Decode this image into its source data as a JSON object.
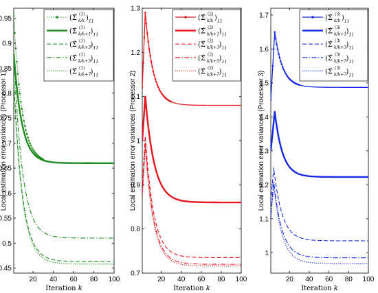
{
  "chart_data": [
    {
      "type": "line",
      "ylabel": "Local estimation error variances (Processor 1)",
      "xlabel": "Iteration k",
      "xlim": [
        1,
        100
      ],
      "ylim": [
        0.44,
        0.97
      ],
      "xticks": [
        20,
        40,
        60,
        80,
        100
      ],
      "yticks": [
        0.45,
        0.5,
        0.55,
        0.6,
        0.65,
        0.7,
        0.75,
        0.8,
        0.85,
        0.9,
        0.95
      ],
      "ytick_labels": [
        "0.45",
        "0.5",
        "0.55",
        "0.6",
        "0.65",
        "0.7",
        "0.75",
        "0.8",
        "0.85",
        "0.9",
        "0.95"
      ],
      "color": "#1e8c1e",
      "legend_position": "top-right",
      "processor": "1",
      "series": [
        {
          "sub": "k/k",
          "style": "dotted-marker",
          "start_value": 0.955,
          "peak_k": null,
          "peak_value": null,
          "final_value": 0.66,
          "tau": 8
        },
        {
          "sub": "k/k+1",
          "style": "solid-thick",
          "start_value": 0.88,
          "peak_k": null,
          "peak_value": null,
          "final_value": 0.66,
          "tau": 8
        },
        {
          "sub": "k/k+3",
          "style": "dashed",
          "start_value": 0.83,
          "peak_k": null,
          "peak_value": null,
          "final_value": 0.463,
          "tau": 8.5
        },
        {
          "sub": "k/k+5",
          "style": "dashdot",
          "start_value": 0.88,
          "peak_k": null,
          "peak_value": null,
          "final_value": 0.51,
          "tau": 8.5
        },
        {
          "sub": "k/k+7",
          "style": "dotted",
          "start_value": 0.82,
          "peak_k": null,
          "peak_value": null,
          "final_value": 0.458,
          "tau": 8.5
        }
      ]
    },
    {
      "type": "line",
      "ylabel": "Local estimation error variances (Processor 2)",
      "xlabel": "Iteration k",
      "xlim": [
        1,
        100
      ],
      "ylim": [
        0.7,
        1.3
      ],
      "xticks": [
        20,
        40,
        60,
        80,
        100
      ],
      "yticks": [
        0.7,
        0.8,
        0.9,
        1.0,
        1.1,
        1.2,
        1.3
      ],
      "ytick_labels": [
        "0.7",
        "0.8",
        "0.9",
        "1",
        "1.1",
        "1.2",
        "1.3"
      ],
      "color": "#e8141e",
      "legend_position": "top-right",
      "processor": "2",
      "series": [
        {
          "sub": "k/k",
          "style": "solid-marker",
          "start_value": 1.12,
          "peak_k": 4,
          "peak_value": 1.29,
          "final_value": 1.08,
          "tau": 8
        },
        {
          "sub": "k/k+1",
          "style": "solid-thick",
          "start_value": 1.0,
          "peak_k": 4,
          "peak_value": 1.1,
          "final_value": 0.86,
          "tau": 9
        },
        {
          "sub": "k/k+3",
          "style": "dashed",
          "start_value": 0.9,
          "peak_k": 4,
          "peak_value": 1.01,
          "final_value": 0.735,
          "tau": 8.5
        },
        {
          "sub": "k/k+5",
          "style": "dashdot",
          "start_value": 0.88,
          "peak_k": 4,
          "peak_value": 0.995,
          "final_value": 0.72,
          "tau": 8.5
        },
        {
          "sub": "k/k+7",
          "style": "dotted",
          "start_value": 0.87,
          "peak_k": 4,
          "peak_value": 0.985,
          "final_value": 0.716,
          "tau": 8.5
        }
      ]
    },
    {
      "type": "line",
      "ylabel": "Local estimation error variances (Processor 3)",
      "xlabel": "Iteration k",
      "xlim": [
        1,
        100
      ],
      "ylim": [
        0.94,
        1.72
      ],
      "xticks": [
        20,
        40,
        60,
        80,
        100
      ],
      "yticks": [
        1.0,
        1.1,
        1.2,
        1.3,
        1.4,
        1.5,
        1.6,
        1.7
      ],
      "ytick_labels": [
        "1",
        "1.1",
        "1.2",
        "1.3",
        "1.4",
        "1.5",
        "1.6",
        "1.7"
      ],
      "color": "#1428e6",
      "legend_position": "top-right",
      "processor": "3",
      "series": [
        {
          "sub": "k/k",
          "style": "solid-marker",
          "start_value": 1.45,
          "peak_k": 5,
          "peak_value": 1.65,
          "final_value": 1.487,
          "tau": 8
        },
        {
          "sub": "k/k+1",
          "style": "solid-thick",
          "start_value": 1.3,
          "peak_k": 5,
          "peak_value": 1.415,
          "final_value": 1.223,
          "tau": 8
        },
        {
          "sub": "k/k+3",
          "style": "dashed",
          "start_value": 1.15,
          "peak_k": 4,
          "peak_value": 1.25,
          "final_value": 1.035,
          "tau": 8.5
        },
        {
          "sub": "k/k+5",
          "style": "dashdot",
          "start_value": 1.11,
          "peak_k": 4,
          "peak_value": 1.21,
          "final_value": 0.985,
          "tau": 8.5
        },
        {
          "sub": "k/k+7",
          "style": "dotted",
          "start_value": 1.1,
          "peak_k": 4,
          "peak_value": 1.2,
          "final_value": 0.968,
          "tau": 8.5
        }
      ]
    }
  ]
}
